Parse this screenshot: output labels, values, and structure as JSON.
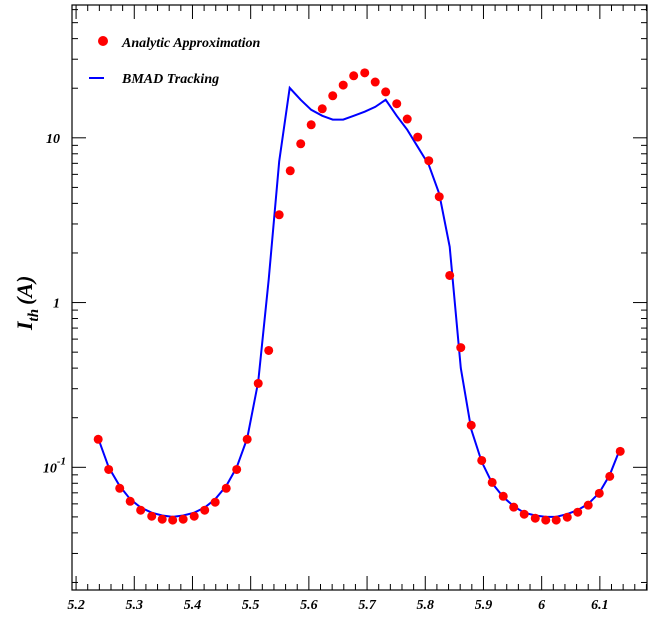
{
  "chart_data": {
    "type": "scatter+line",
    "title": "",
    "xlabel": "",
    "ylabel": "I",
    "ylabel_sub": "th",
    "ylabel_unit": "(A)",
    "yscale": "log",
    "xlim": [
      5.193,
      6.181
    ],
    "ylim": [
      0.018,
      64
    ],
    "grid": false,
    "legend_position": "top-left",
    "x_ticks": [
      5.2,
      5.3,
      5.4,
      5.5,
      5.6,
      5.7,
      5.8,
      5.9,
      6,
      6.1
    ],
    "x_tick_labels": [
      "5.2",
      "5.3",
      "5.4",
      "5.5",
      "5.6",
      "5.7",
      "5.8",
      "5.9",
      "6",
      "6.1"
    ],
    "y_ticks": [
      {
        "value": 10,
        "base": "10",
        "exp": ""
      },
      {
        "value": 1,
        "base": "1",
        "exp": ""
      },
      {
        "value": 0.1,
        "base": "10",
        "exp": "-1"
      }
    ],
    "series": [
      {
        "name": "Analytic Approximation",
        "kind": "scatter",
        "color": "#ff0000",
        "x": [
          5.238,
          5.256,
          5.275,
          5.293,
          5.311,
          5.33,
          5.348,
          5.366,
          5.384,
          5.403,
          5.421,
          5.439,
          5.458,
          5.476,
          5.494,
          5.513,
          5.531,
          5.549,
          5.568,
          5.586,
          5.604,
          5.623,
          5.641,
          5.659,
          5.677,
          5.696,
          5.714,
          5.732,
          5.751,
          5.769,
          5.787,
          5.806,
          5.824,
          5.842,
          5.861,
          5.879,
          5.897,
          5.915,
          5.934,
          5.952,
          5.97,
          5.989,
          6.007,
          6.025,
          6.044,
          6.062,
          6.08,
          6.099,
          6.117,
          6.135
        ],
        "y": [
          0.148,
          0.097,
          0.0746,
          0.0622,
          0.0549,
          0.0505,
          0.0484,
          0.0478,
          0.0484,
          0.0505,
          0.0549,
          0.0614,
          0.0746,
          0.097,
          0.148,
          0.323,
          0.512,
          3.41,
          6.31,
          9.2,
          12.0,
          15.0,
          18.0,
          20.9,
          23.8,
          24.8,
          21.8,
          19.0,
          16.1,
          13.0,
          10.1,
          7.26,
          4.39,
          1.46,
          0.533,
          0.18,
          0.11,
          0.081,
          0.0667,
          0.0573,
          0.0519,
          0.0491,
          0.0478,
          0.0478,
          0.0498,
          0.0534,
          0.0589,
          0.0695,
          0.0881,
          0.125
        ]
      },
      {
        "name": "BMAD Tracking",
        "kind": "line",
        "color": "#0000ff",
        "x": [
          5.238,
          5.256,
          5.275,
          5.293,
          5.311,
          5.33,
          5.348,
          5.366,
          5.384,
          5.403,
          5.421,
          5.439,
          5.458,
          5.476,
          5.494,
          5.513,
          5.531,
          5.549,
          5.567,
          5.586,
          5.604,
          5.623,
          5.641,
          5.659,
          5.677,
          5.696,
          5.714,
          5.732,
          5.751,
          5.769,
          5.787,
          5.806,
          5.824,
          5.842,
          5.861,
          5.879,
          5.897,
          5.915,
          5.934,
          5.952,
          5.97,
          5.989,
          6.007,
          6.025,
          6.044,
          6.062,
          6.08,
          6.099,
          6.117,
          6.135
        ],
        "y": [
          0.15,
          0.1,
          0.077,
          0.064,
          0.057,
          0.053,
          0.051,
          0.05,
          0.051,
          0.053,
          0.057,
          0.064,
          0.077,
          0.1,
          0.15,
          0.33,
          1.38,
          7.2,
          20.1,
          17.0,
          14.8,
          13.6,
          12.9,
          12.9,
          13.6,
          14.4,
          15.4,
          17.0,
          13.6,
          11.2,
          8.82,
          6.85,
          4.58,
          2.18,
          0.4,
          0.17,
          0.108,
          0.08,
          0.066,
          0.058,
          0.053,
          0.051,
          0.05,
          0.05,
          0.052,
          0.055,
          0.06,
          0.07,
          0.09,
          0.13
        ]
      }
    ]
  }
}
